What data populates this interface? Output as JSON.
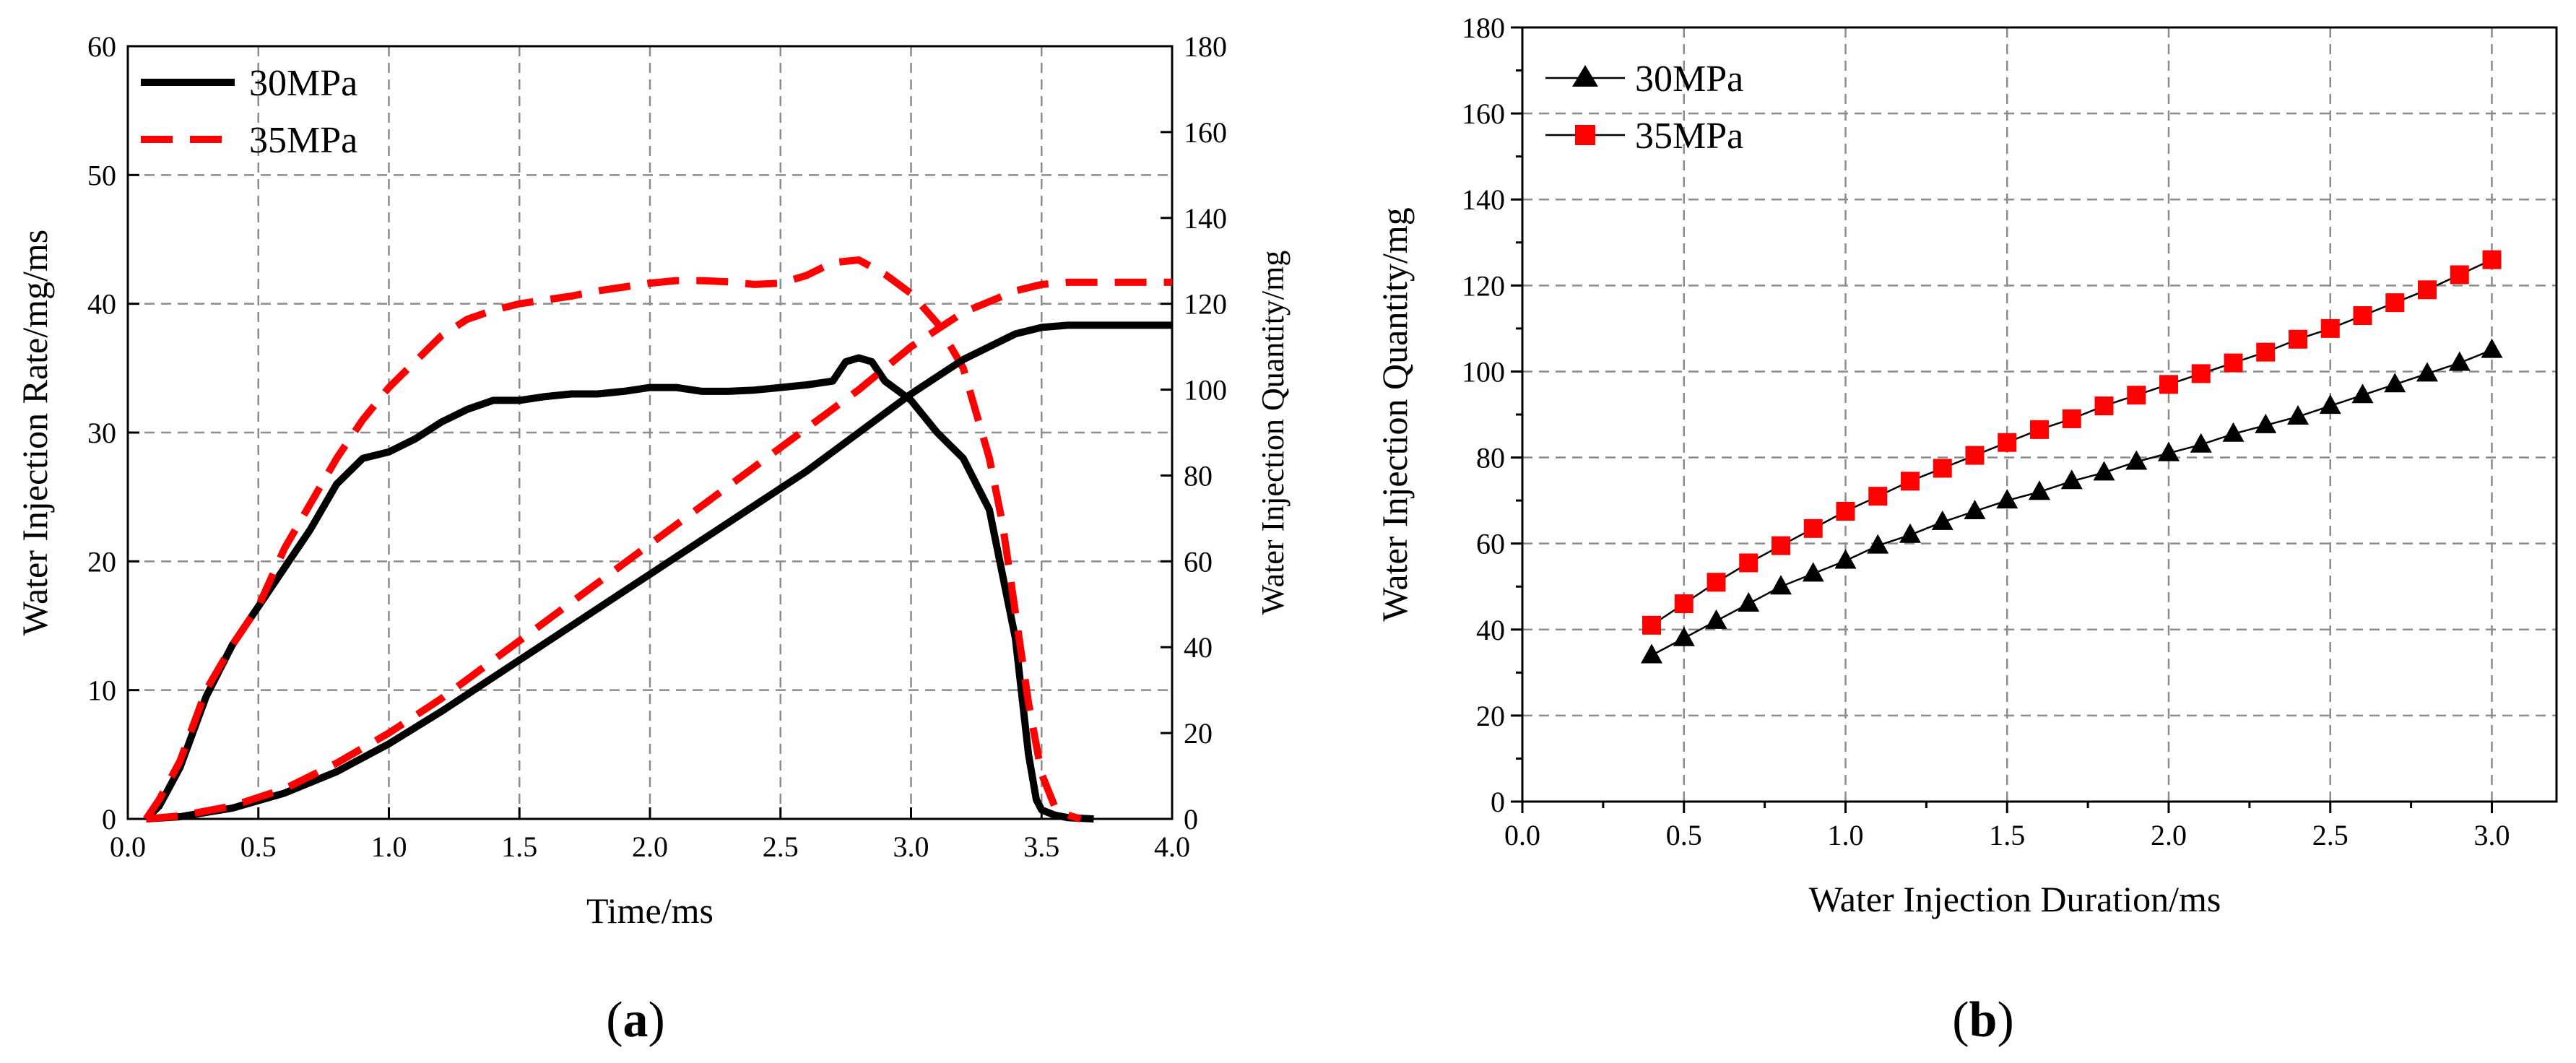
{
  "chart_data": [
    {
      "id": "a",
      "type": "line",
      "panel_label_letter": "a",
      "xlabel": "Time/ms",
      "ylabel_left": "Water Injection Rate/mg/ms",
      "ylabel_right": "Water Injection Quantity/mg",
      "xlim": [
        0,
        4
      ],
      "ylim_left": [
        0,
        60
      ],
      "ylim_right": [
        0,
        180
      ],
      "xticks": [
        "0.0",
        "0.5",
        "1.0",
        "1.5",
        "2.0",
        "2.5",
        "3.0",
        "3.5",
        "4.0"
      ],
      "yticks_left": [
        "0",
        "10",
        "20",
        "30",
        "40",
        "50",
        "60"
      ],
      "yticks_right": [
        "0",
        "20",
        "40",
        "60",
        "80",
        "100",
        "120",
        "140",
        "160",
        "180"
      ],
      "legend_position": "top-left",
      "legend": [
        "30MPa",
        "35MPa"
      ],
      "series": [
        {
          "name": "30MPa",
          "kind": "rate",
          "axis": "left",
          "color": "#000000",
          "style": "solid",
          "x": [
            0.07,
            0.12,
            0.2,
            0.3,
            0.4,
            0.5,
            0.6,
            0.7,
            0.8,
            0.9,
            1.0,
            1.1,
            1.2,
            1.3,
            1.4,
            1.5,
            1.6,
            1.7,
            1.8,
            1.9,
            2.0,
            2.1,
            2.2,
            2.3,
            2.4,
            2.5,
            2.6,
            2.7,
            2.75,
            2.8,
            2.85,
            2.9,
            3.0,
            3.1,
            3.2,
            3.3,
            3.4,
            3.45,
            3.48,
            3.5,
            3.55,
            3.6,
            3.7
          ],
          "y": [
            0,
            1,
            4,
            9.5,
            13.5,
            16.5,
            19.5,
            22.5,
            26,
            28,
            28.5,
            29.5,
            30.8,
            31.8,
            32.5,
            32.5,
            32.8,
            33,
            33,
            33.2,
            33.5,
            33.5,
            33.2,
            33.2,
            33.3,
            33.5,
            33.7,
            34,
            35.5,
            35.8,
            35.5,
            34,
            32.5,
            30,
            28,
            24,
            14,
            5,
            1.5,
            0.7,
            0.3,
            0.1,
            0
          ]
        },
        {
          "name": "35MPa",
          "kind": "rate",
          "axis": "left",
          "color": "#ff0000",
          "style": "dashed",
          "x": [
            0.07,
            0.12,
            0.2,
            0.3,
            0.4,
            0.5,
            0.6,
            0.7,
            0.8,
            0.9,
            1.0,
            1.1,
            1.2,
            1.3,
            1.4,
            1.5,
            1.6,
            1.7,
            1.8,
            1.9,
            2.0,
            2.1,
            2.2,
            2.3,
            2.4,
            2.5,
            2.6,
            2.7,
            2.8,
            2.9,
            3.0,
            3.1,
            3.2,
            3.3,
            3.35,
            3.4,
            3.45,
            3.5,
            3.55,
            3.6,
            3.65
          ],
          "y": [
            0,
            1.5,
            4.5,
            10,
            13.5,
            16.5,
            21,
            24.5,
            28,
            31,
            33.5,
            35.5,
            37.5,
            38.8,
            39.5,
            40,
            40.3,
            40.6,
            41,
            41.3,
            41.6,
            41.8,
            41.8,
            41.7,
            41.5,
            41.6,
            42.2,
            43.2,
            43.4,
            42.3,
            40.8,
            38.5,
            35,
            28,
            23,
            16,
            9,
            3.5,
            1,
            0.3,
            0
          ]
        },
        {
          "name": "30MPa",
          "kind": "quantity",
          "axis": "right",
          "color": "#000000",
          "style": "solid",
          "x": [
            0.07,
            0.2,
            0.4,
            0.6,
            0.8,
            1.0,
            1.2,
            1.4,
            1.6,
            1.8,
            2.0,
            2.2,
            2.4,
            2.6,
            2.8,
            3.0,
            3.2,
            3.4,
            3.5,
            3.6,
            3.8,
            4.0
          ],
          "y": [
            0,
            0.5,
            2.5,
            6,
            11,
            17.5,
            25,
            33,
            41,
            49,
            57,
            65,
            73,
            81,
            90,
            99,
            107,
            113,
            114.5,
            115,
            115,
            115
          ]
        },
        {
          "name": "35MPa",
          "kind": "quantity",
          "axis": "right",
          "color": "#ff0000",
          "style": "dashed",
          "x": [
            0.07,
            0.2,
            0.4,
            0.6,
            0.8,
            1.0,
            1.2,
            1.4,
            1.6,
            1.8,
            2.0,
            2.2,
            2.4,
            2.6,
            2.8,
            3.0,
            3.2,
            3.4,
            3.5,
            3.6,
            3.8,
            4.0
          ],
          "y": [
            0,
            0.7,
            3,
            7,
            13,
            20,
            28,
            37,
            46,
            55,
            64,
            73,
            82,
            91,
            100,
            110,
            118,
            123,
            124.5,
            125,
            125,
            125
          ]
        }
      ]
    },
    {
      "id": "b",
      "type": "line",
      "panel_label_letter": "b",
      "xlabel": "Water Injection Duration/ms",
      "ylabel": "Water Injection Quantity/mg",
      "xlim": [
        0,
        3.2
      ],
      "ylim": [
        0,
        180
      ],
      "xticks": [
        "0.0",
        "0.5",
        "1.0",
        "1.5",
        "2.0",
        "2.5",
        "3.0"
      ],
      "yticks": [
        "0",
        "20",
        "40",
        "60",
        "80",
        "100",
        "120",
        "140",
        "160",
        "180"
      ],
      "legend_position": "top-left",
      "legend": [
        "30MPa",
        "35MPa"
      ],
      "series": [
        {
          "name": "30MPa",
          "marker": "triangle",
          "color": "#000000",
          "x": [
            0.4,
            0.5,
            0.6,
            0.7,
            0.8,
            0.9,
            1.0,
            1.1,
            1.2,
            1.3,
            1.4,
            1.5,
            1.6,
            1.7,
            1.8,
            1.9,
            2.0,
            2.1,
            2.2,
            2.3,
            2.4,
            2.5,
            2.6,
            2.7,
            2.8,
            2.9,
            3.0
          ],
          "y": [
            34,
            38,
            42,
            46,
            50,
            53,
            56,
            59.5,
            62,
            65,
            67.5,
            70,
            72,
            74.5,
            76.5,
            79,
            81,
            83,
            85.5,
            87.5,
            89.5,
            92,
            94.5,
            97,
            99.5,
            102,
            105
          ]
        },
        {
          "name": "35MPa",
          "marker": "square",
          "color": "#ff0000",
          "x": [
            0.4,
            0.5,
            0.6,
            0.7,
            0.8,
            0.9,
            1.0,
            1.1,
            1.2,
            1.3,
            1.4,
            1.5,
            1.6,
            1.7,
            1.8,
            1.9,
            2.0,
            2.1,
            2.2,
            2.3,
            2.4,
            2.5,
            2.6,
            2.7,
            2.8,
            2.9,
            3.0
          ],
          "y": [
            41,
            46,
            51,
            55.5,
            59.5,
            63.5,
            67.5,
            71,
            74.5,
            77.5,
            80.5,
            83.5,
            86.5,
            89,
            92,
            94.5,
            97,
            99.5,
            102,
            104.5,
            107.5,
            110,
            113,
            116,
            119,
            122.5,
            126
          ]
        }
      ]
    }
  ]
}
